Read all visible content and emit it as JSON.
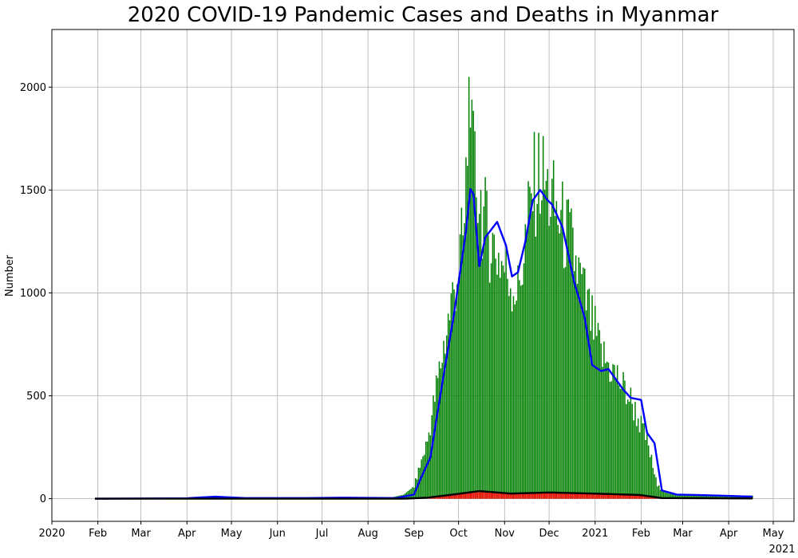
{
  "chart_data": {
    "type": "bar",
    "title": "2020 COVID-19 Pandemic Cases and Deaths in Myanmar",
    "xlabel": "",
    "ylabel": "Number",
    "x_range": [
      "2020-01-01",
      "2021-05-15"
    ],
    "ylim": [
      -110,
      2280
    ],
    "y_ticks": [
      0,
      500,
      1000,
      1500,
      2000
    ],
    "x_ticks": [
      {
        "date": "2020-01-01",
        "label": "2020"
      },
      {
        "date": "2020-02-01",
        "label": "Feb"
      },
      {
        "date": "2020-03-01",
        "label": "Mar"
      },
      {
        "date": "2020-04-01",
        "label": "Apr"
      },
      {
        "date": "2020-05-01",
        "label": "May"
      },
      {
        "date": "2020-06-01",
        "label": "Jun"
      },
      {
        "date": "2020-07-01",
        "label": "Jul"
      },
      {
        "date": "2020-08-01",
        "label": "Aug"
      },
      {
        "date": "2020-09-01",
        "label": "Sep"
      },
      {
        "date": "2020-10-01",
        "label": "Oct"
      },
      {
        "date": "2020-11-01",
        "label": "Nov"
      },
      {
        "date": "2020-12-01",
        "label": "Dec"
      },
      {
        "date": "2021-01-01",
        "label": "2021"
      },
      {
        "date": "2021-02-01",
        "label": "Feb"
      },
      {
        "date": "2021-03-01",
        "label": "Mar"
      },
      {
        "date": "2021-04-01",
        "label": "Apr"
      },
      {
        "date": "2021-05-01",
        "label": "May"
      }
    ],
    "x_secondary_label": "2021",
    "grid": true,
    "legend": "none",
    "series": [
      {
        "kind": "bar",
        "color": "#008000",
        "start_date": "2020-01-30",
        "end_date": "2021-04-17",
        "keypoints": [
          [
            "2020-01-30",
            0
          ],
          [
            "2020-03-20",
            0
          ],
          [
            "2020-04-05",
            5
          ],
          [
            "2020-04-20",
            12
          ],
          [
            "2020-05-05",
            4
          ],
          [
            "2020-06-15",
            3
          ],
          [
            "2020-08-15",
            3
          ],
          [
            "2020-08-25",
            20
          ],
          [
            "2020-09-01",
            60
          ],
          [
            "2020-09-10",
            280
          ],
          [
            "2020-09-20",
            700
          ],
          [
            "2020-09-27",
            980
          ],
          [
            "2020-10-05",
            1300
          ],
          [
            "2020-10-09",
            2158
          ],
          [
            "2020-10-10",
            1650
          ],
          [
            "2020-10-20",
            1300
          ],
          [
            "2020-10-30",
            1150
          ],
          [
            "2020-11-10",
            1000
          ],
          [
            "2020-11-20",
            1500
          ],
          [
            "2020-11-25",
            1580
          ],
          [
            "2020-12-05",
            1400
          ],
          [
            "2020-12-15",
            1250
          ],
          [
            "2020-12-28",
            900
          ],
          [
            "2021-01-05",
            700
          ],
          [
            "2021-01-15",
            600
          ],
          [
            "2021-01-25",
            480
          ],
          [
            "2021-02-05",
            280
          ],
          [
            "2021-02-12",
            60
          ],
          [
            "2021-02-20",
            25
          ],
          [
            "2021-03-10",
            20
          ],
          [
            "2021-04-17",
            15
          ]
        ]
      },
      {
        "kind": "bar",
        "color": "#ff0000",
        "start_date": "2020-01-30",
        "end_date": "2021-04-17",
        "keypoints": [
          [
            "2020-01-30",
            0
          ],
          [
            "2020-08-25",
            0
          ],
          [
            "2020-09-10",
            5
          ],
          [
            "2020-09-25",
            20
          ],
          [
            "2020-10-15",
            35
          ],
          [
            "2020-11-05",
            28
          ],
          [
            "2020-12-01",
            30
          ],
          [
            "2020-12-31",
            25
          ],
          [
            "2021-01-31",
            18
          ],
          [
            "2021-02-15",
            5
          ],
          [
            "2021-04-17",
            1
          ]
        ]
      },
      {
        "kind": "line",
        "color": "#0000ff",
        "keypoints": [
          [
            "2020-01-30",
            0
          ],
          [
            "2020-04-01",
            2
          ],
          [
            "2020-04-20",
            10
          ],
          [
            "2020-05-10",
            3
          ],
          [
            "2020-06-20",
            3
          ],
          [
            "2020-07-15",
            5
          ],
          [
            "2020-08-20",
            3
          ],
          [
            "2020-09-01",
            20
          ],
          [
            "2020-09-05",
            90
          ],
          [
            "2020-09-12",
            200
          ],
          [
            "2020-09-20",
            560
          ],
          [
            "2020-09-28",
            900
          ],
          [
            "2020-10-03",
            1150
          ],
          [
            "2020-10-06",
            1300
          ],
          [
            "2020-10-09",
            1505
          ],
          [
            "2020-10-11",
            1480
          ],
          [
            "2020-10-15",
            1130
          ],
          [
            "2020-10-19",
            1270
          ],
          [
            "2020-10-27",
            1345
          ],
          [
            "2020-11-02",
            1230
          ],
          [
            "2020-11-06",
            1080
          ],
          [
            "2020-11-10",
            1100
          ],
          [
            "2020-11-15",
            1250
          ],
          [
            "2020-11-20",
            1450
          ],
          [
            "2020-11-25",
            1500
          ],
          [
            "2020-11-30",
            1450
          ],
          [
            "2020-12-03",
            1430
          ],
          [
            "2020-12-10",
            1320
          ],
          [
            "2020-12-18",
            1050
          ],
          [
            "2020-12-25",
            880
          ],
          [
            "2020-12-30",
            650
          ],
          [
            "2021-01-05",
            620
          ],
          [
            "2021-01-10",
            630
          ],
          [
            "2021-01-20",
            530
          ],
          [
            "2021-01-25",
            490
          ],
          [
            "2021-02-01",
            480
          ],
          [
            "2021-02-05",
            320
          ],
          [
            "2021-02-10",
            270
          ],
          [
            "2021-02-15",
            40
          ],
          [
            "2021-02-25",
            20
          ],
          [
            "2021-03-10",
            18
          ],
          [
            "2021-03-25",
            15
          ],
          [
            "2021-04-17",
            10
          ]
        ]
      },
      {
        "kind": "line",
        "color": "#000000",
        "keypoints": [
          [
            "2020-01-30",
            0
          ],
          [
            "2020-08-25",
            0
          ],
          [
            "2020-09-10",
            5
          ],
          [
            "2020-09-25",
            18
          ],
          [
            "2020-10-15",
            37
          ],
          [
            "2020-11-05",
            25
          ],
          [
            "2020-12-01",
            30
          ],
          [
            "2020-12-31",
            25
          ],
          [
            "2021-01-31",
            18
          ],
          [
            "2021-02-15",
            3
          ],
          [
            "2021-04-17",
            1
          ]
        ]
      }
    ]
  }
}
